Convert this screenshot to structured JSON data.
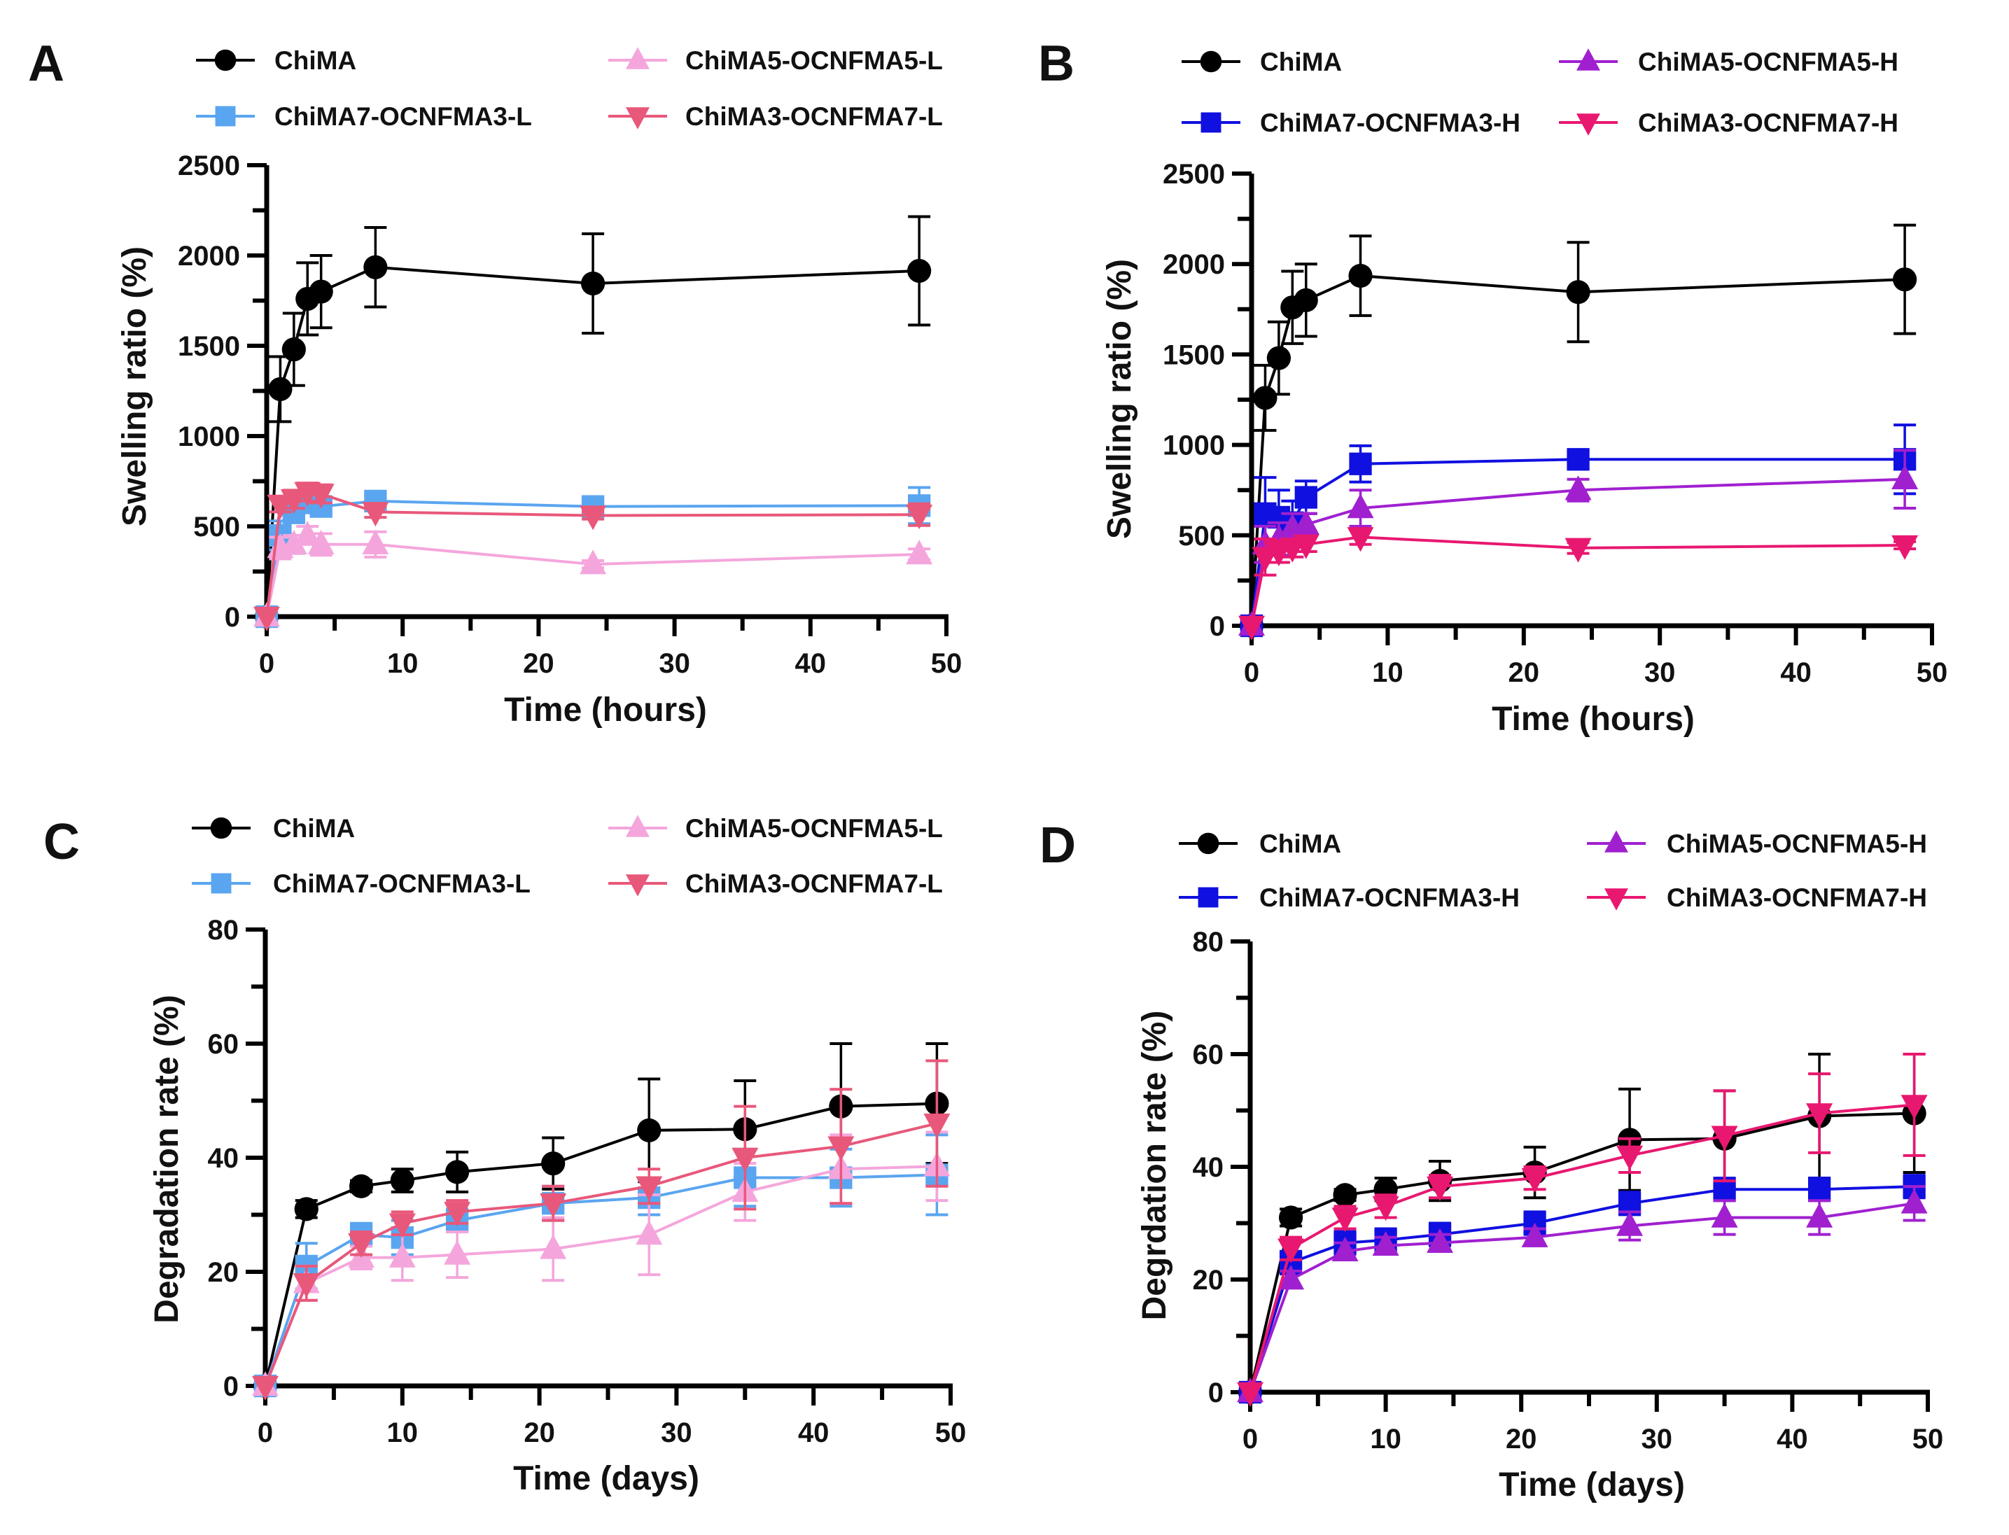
{
  "chart_data": [
    {
      "panel": "A",
      "type": "line",
      "xlabel": "Time (hours)",
      "ylabel": "Swelling ratio (%)",
      "xlim": [
        0,
        50
      ],
      "ylim": [
        0,
        2500
      ],
      "xticks": [
        "0",
        "10",
        "20",
        "30",
        "40",
        "50"
      ],
      "yticks": [
        "0",
        "500",
        "1000",
        "1500",
        "2000",
        "2500"
      ],
      "x": [
        0,
        1,
        2,
        3,
        4,
        8,
        24,
        48
      ],
      "series": [
        {
          "name": "ChiMA",
          "color": "#000000",
          "marker": "circle",
          "values": [
            0,
            1260,
            1480,
            1760,
            1800,
            1935,
            1845,
            1915
          ],
          "err": [
            0,
            180,
            200,
            200,
            200,
            220,
            275,
            300
          ]
        },
        {
          "name": "ChiMA7-OCNFMA3-L",
          "color": "#5aa5f0",
          "marker": "square",
          "values": [
            0,
            450,
            580,
            630,
            610,
            640,
            610,
            615
          ],
          "err": [
            0,
            80,
            60,
            50,
            40,
            40,
            30,
            100
          ]
        },
        {
          "name": "ChiMA5-OCNFMA5-L",
          "color": "#f4a6dc",
          "marker": "triangle-up",
          "values": [
            0,
            380,
            400,
            450,
            400,
            400,
            290,
            345
          ],
          "err": [
            0,
            60,
            50,
            50,
            60,
            70,
            20,
            30
          ]
        },
        {
          "name": "ChiMA3-OCNFMA7-L",
          "color": "#e8587a",
          "marker": "triangle-down",
          "values": [
            0,
            620,
            650,
            690,
            680,
            580,
            560,
            565
          ],
          "err": [
            0,
            40,
            50,
            50,
            50,
            30,
            20,
            60
          ]
        }
      ]
    },
    {
      "panel": "B",
      "type": "line",
      "xlabel": "Time (hours)",
      "ylabel": "Swelling ratio (%)",
      "xlim": [
        0,
        50
      ],
      "ylim": [
        0,
        2500
      ],
      "xticks": [
        "0",
        "10",
        "20",
        "30",
        "40",
        "50"
      ],
      "yticks": [
        "0",
        "500",
        "1000",
        "1500",
        "2000",
        "2500"
      ],
      "x": [
        0,
        1,
        2,
        3,
        4,
        8,
        24,
        48
      ],
      "series": [
        {
          "name": "ChiMA",
          "color": "#000000",
          "marker": "circle",
          "values": [
            0,
            1260,
            1480,
            1760,
            1800,
            1935,
            1845,
            1915
          ],
          "err": [
            0,
            180,
            200,
            200,
            200,
            220,
            275,
            300
          ]
        },
        {
          "name": "ChiMA7-OCNFMA3-H",
          "color": "#1010e0",
          "marker": "square",
          "values": [
            0,
            620,
            600,
            570,
            710,
            895,
            920,
            920
          ],
          "err": [
            0,
            200,
            150,
            120,
            90,
            100,
            50,
            190
          ]
        },
        {
          "name": "ChiMA5-OCNFMA5-H",
          "color": "#a020d0",
          "marker": "triangle-up",
          "values": [
            0,
            450,
            480,
            540,
            560,
            650,
            750,
            810
          ],
          "err": [
            0,
            100,
            90,
            80,
            60,
            100,
            60,
            160
          ]
        },
        {
          "name": "ChiMA3-OCNFMA7-H",
          "color": "#e81870",
          "marker": "triangle-down",
          "values": [
            0,
            380,
            410,
            430,
            450,
            490,
            430,
            445
          ],
          "err": [
            0,
            100,
            60,
            50,
            40,
            40,
            30,
            20
          ]
        }
      ]
    },
    {
      "panel": "C",
      "type": "line",
      "xlabel": "Time (days)",
      "ylabel": "Degradation rate (%)",
      "xlim": [
        0,
        50
      ],
      "ylim": [
        0,
        80
      ],
      "xticks": [
        "0",
        "10",
        "20",
        "30",
        "40",
        "50"
      ],
      "yticks": [
        "0",
        "20",
        "40",
        "60",
        "80"
      ],
      "x": [
        0,
        3,
        7,
        10,
        14,
        21,
        28,
        35,
        42,
        49
      ],
      "series": [
        {
          "name": "ChiMA",
          "color": "#000000",
          "marker": "circle",
          "values": [
            0,
            31,
            35,
            36,
            37.5,
            39,
            44.8,
            45,
            49,
            49.5
          ],
          "err": [
            0,
            1.5,
            1,
            2,
            3.5,
            4.5,
            9,
            8.5,
            11,
            10.5
          ]
        },
        {
          "name": "ChiMA7-OCNFMA3-L",
          "color": "#5aa5f0",
          "marker": "square",
          "values": [
            0,
            21,
            26.5,
            26,
            29,
            32,
            33,
            36.5,
            36.5,
            37
          ],
          "err": [
            0,
            4,
            2,
            3,
            2,
            3,
            3,
            5,
            5,
            7
          ]
        },
        {
          "name": "ChiMA5-OCNFMA5-L",
          "color": "#f4a6dc",
          "marker": "triangle-up",
          "values": [
            0,
            18,
            22.5,
            22.5,
            23,
            24,
            26.5,
            34,
            38,
            38.5
          ],
          "err": [
            0,
            3,
            2,
            4,
            4,
            5.5,
            7,
            5,
            6,
            6
          ]
        },
        {
          "name": "ChiMA3-OCNFMA7-L",
          "color": "#e8587a",
          "marker": "triangle-down",
          "values": [
            0,
            18,
            25,
            28.5,
            30.5,
            32,
            35,
            40,
            42,
            46
          ],
          "err": [
            0,
            3,
            2,
            2,
            2,
            3,
            3,
            9,
            10,
            11
          ]
        }
      ]
    },
    {
      "panel": "D",
      "type": "line",
      "xlabel": "Time (days)",
      "ylabel": "Degrdation rate (%)",
      "xlim": [
        0,
        50
      ],
      "ylim": [
        0,
        80
      ],
      "xticks": [
        "0",
        "10",
        "20",
        "30",
        "40",
        "50"
      ],
      "yticks": [
        "0",
        "20",
        "40",
        "60",
        "80"
      ],
      "x": [
        0,
        3,
        7,
        10,
        14,
        21,
        28,
        35,
        42,
        49
      ],
      "series": [
        {
          "name": "ChiMA",
          "color": "#000000",
          "marker": "circle",
          "values": [
            0,
            31,
            35,
            36,
            37.5,
            39,
            44.8,
            45,
            49,
            49.5
          ],
          "err": [
            0,
            1.5,
            1,
            2,
            3.5,
            4.5,
            9,
            8.5,
            11,
            10.5
          ]
        },
        {
          "name": "ChiMA7-OCNFMA3-H",
          "color": "#1010e0",
          "marker": "square",
          "values": [
            0,
            23,
            26.5,
            27,
            28,
            30,
            33.5,
            36,
            36,
            36.5
          ],
          "err": [
            0,
            2,
            2,
            2,
            2,
            2,
            2,
            2,
            2,
            2
          ]
        },
        {
          "name": "ChiMA5-OCNFMA5-H",
          "color": "#a020d0",
          "marker": "triangle-up",
          "values": [
            0,
            20,
            25,
            26,
            26.5,
            27.5,
            29.5,
            31,
            31,
            33.5
          ],
          "err": [
            0,
            1.5,
            1.5,
            1.5,
            1.5,
            1.5,
            2.5,
            3,
            3,
            3
          ]
        },
        {
          "name": "ChiMA3-OCNFMA7-H",
          "color": "#e81870",
          "marker": "triangle-down",
          "values": [
            0,
            25.5,
            31,
            33,
            36.5,
            38,
            42,
            45.5,
            49.5,
            51
          ],
          "err": [
            0,
            2,
            2,
            2,
            2,
            2,
            3,
            8,
            7,
            9
          ]
        }
      ]
    }
  ]
}
